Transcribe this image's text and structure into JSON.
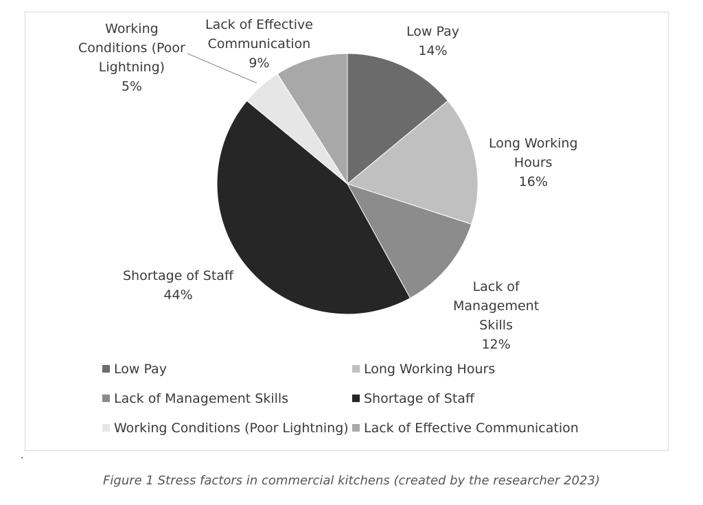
{
  "chart_data": {
    "type": "pie",
    "title": "",
    "slices": [
      {
        "label": "Low Pay",
        "label_lines": [
          "Low Pay"
        ],
        "percent_label": "14%",
        "value": 14,
        "color": "#6b6b6b"
      },
      {
        "label": "Long Working Hours",
        "label_lines": [
          "Long Working",
          "Hours"
        ],
        "percent_label": "16%",
        "value": 16,
        "color": "#c0c0c0"
      },
      {
        "label": "Lack of Management Skills",
        "label_lines": [
          "Lack of",
          "Management",
          "Skills"
        ],
        "percent_label": "12%",
        "value": 12,
        "color": "#8c8c8c"
      },
      {
        "label": "Shortage of Staff",
        "label_lines": [
          "Shortage of Staff"
        ],
        "percent_label": "44%",
        "value": 44,
        "color": "#262626"
      },
      {
        "label": "Working Conditions (Poor Lightning)",
        "label_lines": [
          "Working",
          "Conditions (Poor",
          "Lightning)"
        ],
        "percent_label": "5%",
        "value": 5,
        "color": "#e6e6e6"
      },
      {
        "label": "Lack of Effective Communication",
        "label_lines": [
          "Lack of Effective",
          "Communication"
        ],
        "percent_label": "9%",
        "value": 9,
        "color": "#a8a8a8"
      }
    ],
    "legend": {
      "placement": "bottom",
      "entries": [
        "Low Pay",
        "Long Working Hours",
        "Lack of Management Skills",
        "Shortage of Staff",
        "Working Conditions (Poor Lightning)",
        "Lack of Effective Communication"
      ]
    }
  },
  "stray_mark": ".",
  "caption": "Figure 1 Stress factors in commercial kitchens (created by the researcher 2023)"
}
